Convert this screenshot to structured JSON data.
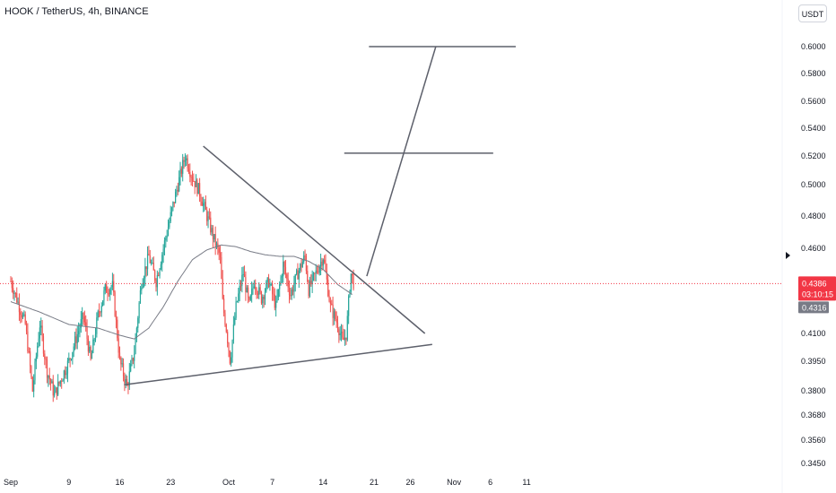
{
  "header": {
    "title": "HOOK / TetherUS, 4h, BINANCE",
    "currency_button": "USDT"
  },
  "colors": {
    "up": "#26a69a",
    "down": "#ef5350",
    "ma": "#787b86",
    "drawing": "#5d606b",
    "current_price": "#f23645",
    "ma_badge": "#787b86"
  },
  "chart_data": {
    "type": "candlestick",
    "symbol": "HOOK / TetherUS",
    "interval": "4h",
    "exchange": "BINANCE",
    "y_scale": "log",
    "ylim": [
      0.342,
      0.62
    ],
    "y_ticks": [
      "0.6000",
      "0.5800",
      "0.5600",
      "0.5400",
      "0.5200",
      "0.5000",
      "0.4800",
      "0.4600",
      "0.4386",
      "0.4316",
      "0.4100",
      "0.3950",
      "0.3800",
      "0.3680",
      "0.3560",
      "0.3450"
    ],
    "x_ticks": [
      {
        "label": "Sep",
        "day": 0
      },
      {
        "label": "9",
        "day": 8
      },
      {
        "label": "16",
        "day": 15
      },
      {
        "label": "23",
        "day": 22
      },
      {
        "label": "Oct",
        "day": 30
      },
      {
        "label": "7",
        "day": 36
      },
      {
        "label": "14",
        "day": 43
      },
      {
        "label": "21",
        "day": 50
      },
      {
        "label": "26",
        "day": 55
      },
      {
        "label": "Nov",
        "day": 61
      },
      {
        "label": "6",
        "day": 66
      },
      {
        "label": "11",
        "day": 71
      }
    ],
    "current_price": {
      "value": 0.4386,
      "label": "0.4386",
      "countdown": "03:10:15"
    },
    "ma_value": {
      "value": 0.4316,
      "label": "0.4316"
    },
    "price_path": [
      [
        0,
        0.44
      ],
      [
        2,
        0.415
      ],
      [
        3,
        0.38
      ],
      [
        4,
        0.415
      ],
      [
        5,
        0.39
      ],
      [
        6,
        0.378
      ],
      [
        8,
        0.395
      ],
      [
        10,
        0.42
      ],
      [
        11,
        0.395
      ],
      [
        12,
        0.42
      ],
      [
        13,
        0.435
      ],
      [
        14,
        0.437
      ],
      [
        15,
        0.395
      ],
      [
        16,
        0.382
      ],
      [
        17,
        0.4
      ],
      [
        18,
        0.44
      ],
      [
        19,
        0.455
      ],
      [
        20,
        0.44
      ],
      [
        21,
        0.46
      ],
      [
        22,
        0.48
      ],
      [
        23,
        0.5
      ],
      [
        24,
        0.52
      ],
      [
        25,
        0.505
      ],
      [
        26,
        0.495
      ],
      [
        27,
        0.48
      ],
      [
        28,
        0.465
      ],
      [
        28.8,
        0.455
      ],
      [
        29.2,
        0.425
      ],
      [
        29.6,
        0.415
      ],
      [
        30.2,
        0.395
      ],
      [
        31,
        0.425
      ],
      [
        32,
        0.445
      ],
      [
        32.8,
        0.425
      ],
      [
        33.5,
        0.44
      ],
      [
        34.5,
        0.43
      ],
      [
        35.5,
        0.44
      ],
      [
        36.5,
        0.425
      ],
      [
        37.5,
        0.45
      ],
      [
        38.5,
        0.432
      ],
      [
        39.5,
        0.445
      ],
      [
        40.5,
        0.455
      ],
      [
        41,
        0.435
      ],
      [
        42,
        0.445
      ],
      [
        43,
        0.455
      ],
      [
        44,
        0.425
      ],
      [
        45,
        0.415
      ],
      [
        45.7,
        0.405
      ],
      [
        46.2,
        0.41
      ],
      [
        46.8,
        0.445
      ],
      [
        47.2,
        0.4386
      ]
    ],
    "ma_path": [
      [
        0,
        0.428
      ],
      [
        4,
        0.422
      ],
      [
        8,
        0.415
      ],
      [
        12,
        0.413
      ],
      [
        15,
        0.409
      ],
      [
        17,
        0.407
      ],
      [
        19,
        0.413
      ],
      [
        21,
        0.425
      ],
      [
        23,
        0.44
      ],
      [
        25,
        0.453
      ],
      [
        27,
        0.459
      ],
      [
        29,
        0.462
      ],
      [
        31,
        0.461
      ],
      [
        33,
        0.458
      ],
      [
        35,
        0.456
      ],
      [
        37,
        0.455
      ],
      [
        39,
        0.455
      ],
      [
        41,
        0.452
      ],
      [
        43,
        0.447
      ],
      [
        45,
        0.438
      ],
      [
        47.2,
        0.4316
      ]
    ],
    "drawings": {
      "triangle_upper": [
        [
          26.5,
          0.527
        ],
        [
          57,
          0.41
        ]
      ],
      "triangle_lower": [
        [
          15.6,
          0.383
        ],
        [
          58,
          0.404
        ]
      ],
      "projection": [
        [
          49,
          0.443
        ],
        [
          58.5,
          0.6
        ]
      ],
      "target_lines": [
        {
          "from": 49.3,
          "to": 69.5,
          "price": 0.6
        },
        {
          "from": 45.9,
          "to": 66.4,
          "price": 0.522
        }
      ]
    }
  }
}
